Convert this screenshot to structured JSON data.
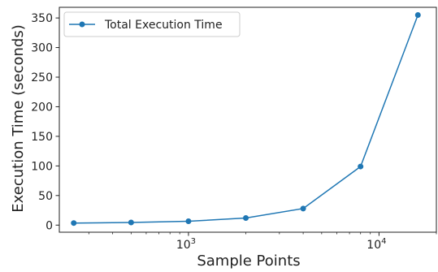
{
  "chart_data": {
    "type": "line",
    "xlabel": "Sample Points",
    "ylabel": "Execution Time (seconds)",
    "xscale": "log",
    "xlim": [
      210,
      20000
    ],
    "ylim": [
      -12,
      368
    ],
    "grid": false,
    "legend_position": "top-left",
    "x_major_ticks": [
      {
        "value": 1000,
        "base": "10",
        "exp": "3"
      },
      {
        "value": 10000,
        "base": "10",
        "exp": "4"
      }
    ],
    "y_ticks": [
      0,
      50,
      100,
      150,
      200,
      250,
      300,
      350
    ],
    "series": [
      {
        "name": "Total Execution Time",
        "color": "#1f77b4",
        "marker": "circle",
        "x": [
          250,
          500,
          1000,
          2000,
          4000,
          8000,
          16000
        ],
        "y": [
          3.5,
          4.5,
          6.5,
          12,
          28,
          99,
          355
        ]
      }
    ]
  }
}
